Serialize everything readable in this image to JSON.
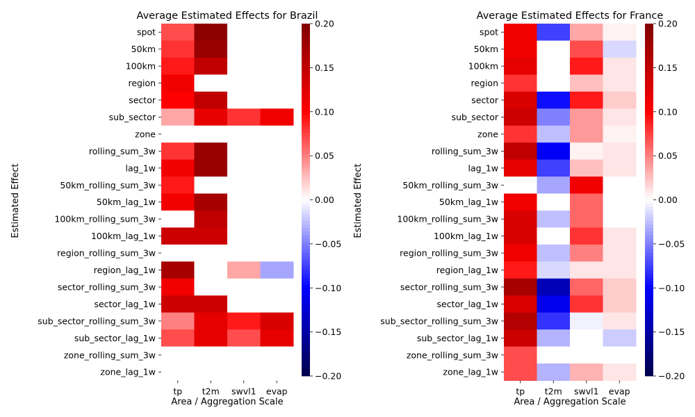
{
  "chart_data": [
    {
      "type": "heatmap",
      "title": "Average Estimated Effects for Brazil",
      "xlabel": "Area / Aggregation Scale",
      "ylabel": "Estimated Effect",
      "x": [
        "tp",
        "t2m",
        "swvl1",
        "evap"
      ],
      "y": [
        "spot",
        "50km",
        "100km",
        "region",
        "sector",
        "sub_sector",
        "zone",
        "rolling_sum_3w",
        "lag_1w",
        "50km_rolling_sum_3w",
        "50km_lag_1w",
        "100km_rolling_sum_3w",
        "100km_lag_1w",
        "region_rolling_sum_3w",
        "region_lag_1w",
        "sector_rolling_sum_3w",
        "sector_lag_1w",
        "sub_sector_rolling_sum_3w",
        "sub_sector_lag_1w",
        "zone_rolling_sum_3w",
        "zone_lag_1w"
      ],
      "values": [
        [
          0.07,
          0.19,
          0.0,
          0.0
        ],
        [
          0.08,
          0.18,
          0.0,
          0.0
        ],
        [
          0.09,
          0.15,
          0.0,
          0.0
        ],
        [
          0.11,
          0.0,
          0.0,
          0.0
        ],
        [
          0.1,
          0.15,
          0.0,
          0.0
        ],
        [
          0.035,
          0.12,
          0.08,
          0.11
        ],
        [
          0.0,
          0.0,
          0.0,
          0.0
        ],
        [
          0.08,
          0.18,
          0.0,
          0.0
        ],
        [
          0.11,
          0.18,
          0.0,
          0.0
        ],
        [
          0.09,
          0.0,
          0.0,
          0.0
        ],
        [
          0.11,
          0.17,
          0.0,
          0.0
        ],
        [
          0.0,
          0.15,
          0.0,
          0.0
        ],
        [
          0.14,
          0.14,
          0.0,
          0.0
        ],
        [
          0.0,
          0.0,
          0.0,
          0.0
        ],
        [
          0.17,
          0.0,
          0.035,
          -0.035
        ],
        [
          0.11,
          0.0,
          0.0,
          0.0
        ],
        [
          0.14,
          0.14,
          0.0,
          0.0
        ],
        [
          0.05,
          0.12,
          0.09,
          0.13
        ],
        [
          0.07,
          0.12,
          0.07,
          0.12
        ],
        [
          0.0,
          0.0,
          0.0,
          0.0
        ],
        [
          0.0,
          0.0,
          0.0,
          0.0
        ]
      ],
      "colorbar": {
        "min": -0.2,
        "max": 0.2,
        "ticks": [
          "0.20",
          "0.15",
          "0.10",
          "0.05",
          "0.00",
          "−0.05",
          "−0.10",
          "−0.15",
          "−0.20"
        ]
      },
      "colormap": "seismic"
    },
    {
      "type": "heatmap",
      "title": "Average Estimated Effects for France",
      "xlabel": "Area / Aggregation Scale",
      "ylabel": "Estimated Effect",
      "x": [
        "tp",
        "t2m",
        "swvl1",
        "evap"
      ],
      "y": [
        "spot",
        "50km",
        "100km",
        "region",
        "sector",
        "sub_sector",
        "zone",
        "rolling_sum_3w",
        "lag_1w",
        "50km_rolling_sum_3w",
        "50km_lag_1w",
        "100km_rolling_sum_3w",
        "100km_lag_1w",
        "region_rolling_sum_3w",
        "region_lag_1w",
        "sector_rolling_sum_3w",
        "sector_lag_1w",
        "sub_sector_rolling_sum_3w",
        "sub_sector_lag_1w",
        "zone_rolling_sum_3w",
        "zone_lag_1w"
      ],
      "values": [
        [
          0.11,
          -0.075,
          0.035,
          0.005
        ],
        [
          0.11,
          0.0,
          0.07,
          -0.015
        ],
        [
          0.12,
          0.0,
          0.09,
          0.01
        ],
        [
          0.08,
          0.0,
          0.025,
          0.01
        ],
        [
          0.13,
          -0.095,
          0.09,
          0.02
        ],
        [
          0.14,
          -0.05,
          0.04,
          0.01
        ],
        [
          0.08,
          -0.025,
          0.04,
          0.005
        ],
        [
          0.15,
          -0.105,
          0.005,
          0.01
        ],
        [
          0.12,
          -0.075,
          0.025,
          0.01
        ],
        [
          0.0,
          -0.035,
          0.11,
          0.0
        ],
        [
          0.11,
          0.0,
          0.06,
          0.0
        ],
        [
          0.13,
          -0.025,
          0.06,
          0.0
        ],
        [
          0.13,
          0.0,
          0.08,
          0.01
        ],
        [
          0.11,
          -0.025,
          0.05,
          0.01
        ],
        [
          0.09,
          -0.015,
          0.01,
          0.01
        ],
        [
          0.17,
          -0.14,
          0.06,
          0.02
        ],
        [
          0.13,
          -0.11,
          0.08,
          0.02
        ],
        [
          0.16,
          -0.08,
          -0.005,
          0.01
        ],
        [
          0.14,
          -0.03,
          0.0,
          -0.02
        ],
        [
          0.07,
          0.0,
          0.0,
          0.0
        ],
        [
          0.07,
          -0.03,
          0.03,
          0.01
        ]
      ],
      "colorbar": {
        "min": -0.2,
        "max": 0.2,
        "ticks": [
          "0.20",
          "0.15",
          "0.10",
          "0.05",
          "0.00",
          "−0.05",
          "−0.10",
          "−0.15",
          "−0.20"
        ]
      },
      "colormap": "seismic"
    }
  ]
}
